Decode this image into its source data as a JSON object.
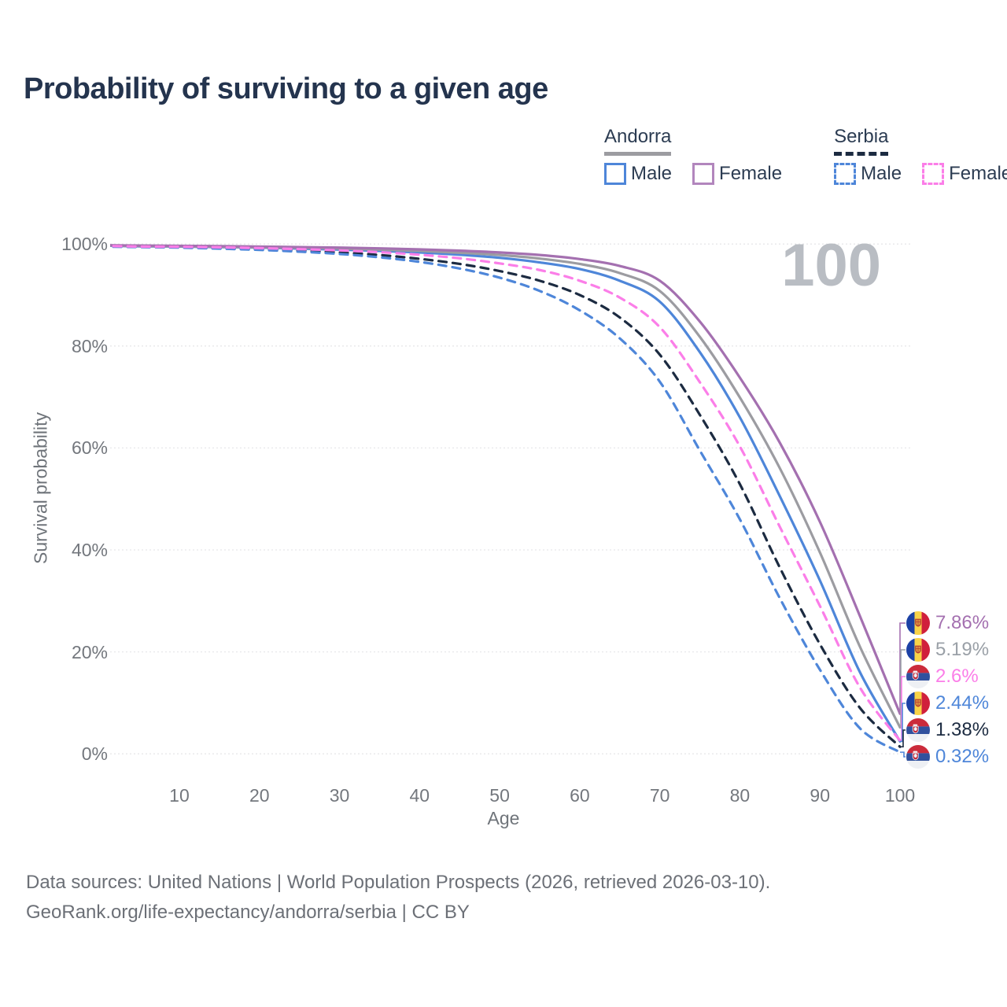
{
  "title": "Probability of surviving to a given age",
  "legend": {
    "groups": [
      {
        "name": "Andorra",
        "underline_style": "solid",
        "underline_color": "#9c9ca1",
        "items": [
          {
            "label": "Male",
            "swatch_color": "#4e86d9",
            "swatch_style": "solid"
          },
          {
            "label": "Female",
            "swatch_color": "#b286bd",
            "swatch_style": "solid"
          }
        ]
      },
      {
        "name": "Serbia",
        "underline_style": "dashed",
        "underline_color": "#1c2b41",
        "items": [
          {
            "label": "Male",
            "swatch_color": "#4e86d9",
            "swatch_style": "dashed"
          },
          {
            "label": "Female",
            "swatch_color": "#fb7ee8",
            "swatch_style": "dashed"
          }
        ]
      }
    ]
  },
  "watermark": "100",
  "footer": {
    "line1": "Data sources: United Nations | World Population Prospects (2026, retrieved 2026-03-10).",
    "line2": "GeoRank.org/life-expectancy/andorra/serbia | CC BY"
  },
  "chart_data": {
    "type": "line",
    "title": "Probability of surviving to a given age",
    "xlabel": "Age",
    "ylabel": "Survival probability",
    "xlim": [
      0,
      100
    ],
    "ylim": [
      0,
      100
    ],
    "grid": "horizontal dotted",
    "legend_position": "top-right",
    "x_ticks": [
      10,
      20,
      30,
      40,
      50,
      60,
      70,
      80,
      90,
      100
    ],
    "y_ticks": [
      {
        "value": 100,
        "label": "100%"
      },
      {
        "value": 80,
        "label": "80%"
      },
      {
        "value": 60,
        "label": "60%"
      },
      {
        "value": 40,
        "label": "40%"
      },
      {
        "value": 20,
        "label": "20%"
      },
      {
        "value": 0,
        "label": "0%"
      }
    ],
    "ages": [
      0,
      5,
      10,
      15,
      20,
      25,
      30,
      35,
      40,
      45,
      50,
      55,
      60,
      65,
      70,
      75,
      80,
      85,
      90,
      95,
      100
    ],
    "series": [
      {
        "name": "Andorra Female",
        "country": "andorra",
        "style": "solid",
        "color": "#a470b0",
        "values": [
          99.8,
          99.7,
          99.65,
          99.6,
          99.5,
          99.4,
          99.3,
          99.15,
          98.95,
          98.7,
          98.35,
          97.85,
          97.05,
          95.7,
          92.8,
          84.8,
          73.8,
          61.0,
          45.5,
          27.0,
          7.86
        ]
      },
      {
        "name": "Andorra Both sexes",
        "country": "andorra",
        "style": "solid",
        "color": "#9c9ca1",
        "values": [
          99.75,
          99.6,
          99.55,
          99.45,
          99.35,
          99.25,
          99.1,
          98.9,
          98.65,
          98.3,
          97.85,
          97.15,
          96.1,
          94.3,
          90.8,
          81.8,
          69.9,
          56.0,
          39.5,
          21.0,
          5.19
        ]
      },
      {
        "name": "Andorra Male",
        "country": "andorra",
        "style": "solid",
        "color": "#4e86d9",
        "values": [
          99.7,
          99.55,
          99.5,
          99.4,
          99.3,
          99.1,
          98.9,
          98.65,
          98.35,
          97.9,
          97.3,
          96.4,
          95.1,
          92.8,
          88.7,
          78.8,
          66.0,
          50.5,
          34.0,
          16.0,
          2.44
        ]
      },
      {
        "name": "Serbia Both sexes",
        "country": "serbia",
        "style": "dashed",
        "color": "#1c2b41",
        "values": [
          99.6,
          99.45,
          99.35,
          99.2,
          99.0,
          98.7,
          98.35,
          97.85,
          97.1,
          96.1,
          94.7,
          92.8,
          90.0,
          85.6,
          78.3,
          66.5,
          52.9,
          36.5,
          21.5,
          9.0,
          1.38
        ]
      },
      {
        "name": "Serbia Male",
        "country": "serbia",
        "style": "dashed",
        "color": "#4e86d9",
        "values": [
          99.5,
          99.4,
          99.3,
          99.1,
          98.85,
          98.5,
          98.05,
          97.4,
          96.5,
          95.2,
          93.4,
          90.8,
          87.0,
          81.5,
          73.0,
          59.5,
          46.0,
          30.5,
          16.5,
          5.0,
          0.32
        ]
      },
      {
        "name": "Serbia Female",
        "country": "serbia",
        "style": "dashed",
        "color": "#fb7ee8",
        "values": [
          99.65,
          99.5,
          99.45,
          99.35,
          99.2,
          99.0,
          98.75,
          98.4,
          97.9,
          97.2,
          96.2,
          94.9,
          92.8,
          89.5,
          83.7,
          72.9,
          60.3,
          44.5,
          29.0,
          13.0,
          2.6
        ]
      }
    ],
    "end_labels": [
      {
        "text": "7.86%",
        "value": 7.86,
        "flag": "andorra",
        "color": "#a470b0"
      },
      {
        "text": "5.19%",
        "value": 5.19,
        "flag": "andorra",
        "color": "#9aa0a7"
      },
      {
        "text": "2.6%",
        "value": 2.6,
        "flag": "serbia",
        "color": "#fb7ee8"
      },
      {
        "text": "2.44%",
        "value": 2.44,
        "flag": "andorra",
        "color": "#4e86d9"
      },
      {
        "text": "1.38%",
        "value": 1.38,
        "flag": "serbia",
        "color": "#1c2b41"
      },
      {
        "text": "0.32%",
        "value": 0.32,
        "flag": "serbia",
        "color": "#4e86d9"
      }
    ],
    "flag_colors": {
      "andorra": {
        "left": "#1c41a5",
        "mid": "#f9d348",
        "right": "#d0203c",
        "emblem": "#e09c42",
        "emblem_border": "#b5372e"
      },
      "serbia": {
        "top": "#cb2b3b",
        "mid": "#31519e",
        "bottom": "#eef0f4",
        "emblem": "#c0273a",
        "emblem_detail": "#f2f3f5"
      }
    }
  }
}
